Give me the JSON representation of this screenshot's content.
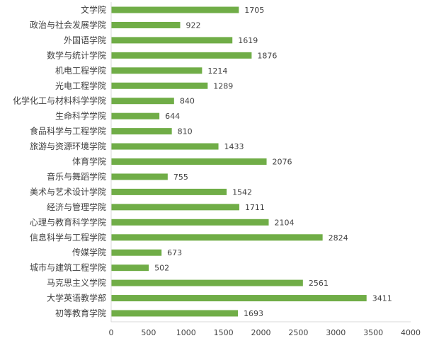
{
  "chart_data": {
    "type": "bar",
    "orientation": "horizontal",
    "categories": [
      "文学院",
      "政治与社会发展学院",
      "外国语学院",
      "数学与统计学院",
      "机电工程学院",
      "光电工程学院",
      "化学化工与材料科学学院",
      "生命科学学院",
      "食品科学与工程学院",
      "旅游与资源环境学院",
      "体育学院",
      "音乐与舞蹈学院",
      "美术与艺术设计学院",
      "经济与管理学院",
      "心理与教育科学学院",
      "信息科学与工程学院",
      "传媒学院",
      "城市与建筑工程学院",
      "马克思主义学院",
      "大学英语教学部",
      "初等教育学院"
    ],
    "values": [
      1705,
      922,
      1619,
      1876,
      1214,
      1289,
      840,
      644,
      810,
      1433,
      2076,
      755,
      1542,
      1711,
      2104,
      2824,
      673,
      502,
      2561,
      3411,
      1693
    ],
    "value_labels": [
      "1705",
      "922",
      "1619",
      "1876",
      "1214",
      "1289",
      "840",
      "644",
      "810",
      "1433",
      "2076",
      "755",
      "1542",
      "1711",
      "2104",
      "2824",
      "673",
      "502",
      "2561",
      "3411",
      "1693"
    ],
    "x_ticks": [
      "0",
      "500",
      "1000",
      "1500",
      "2000",
      "2500",
      "3000",
      "3500",
      "4000"
    ],
    "xlim": [
      0,
      4000
    ],
    "title": "",
    "xlabel": "",
    "ylabel": "",
    "grid": false,
    "legend": "none",
    "bar_color": "#70ad47",
    "axis_color": "#d9d9d9",
    "text_color": "#404040"
  }
}
